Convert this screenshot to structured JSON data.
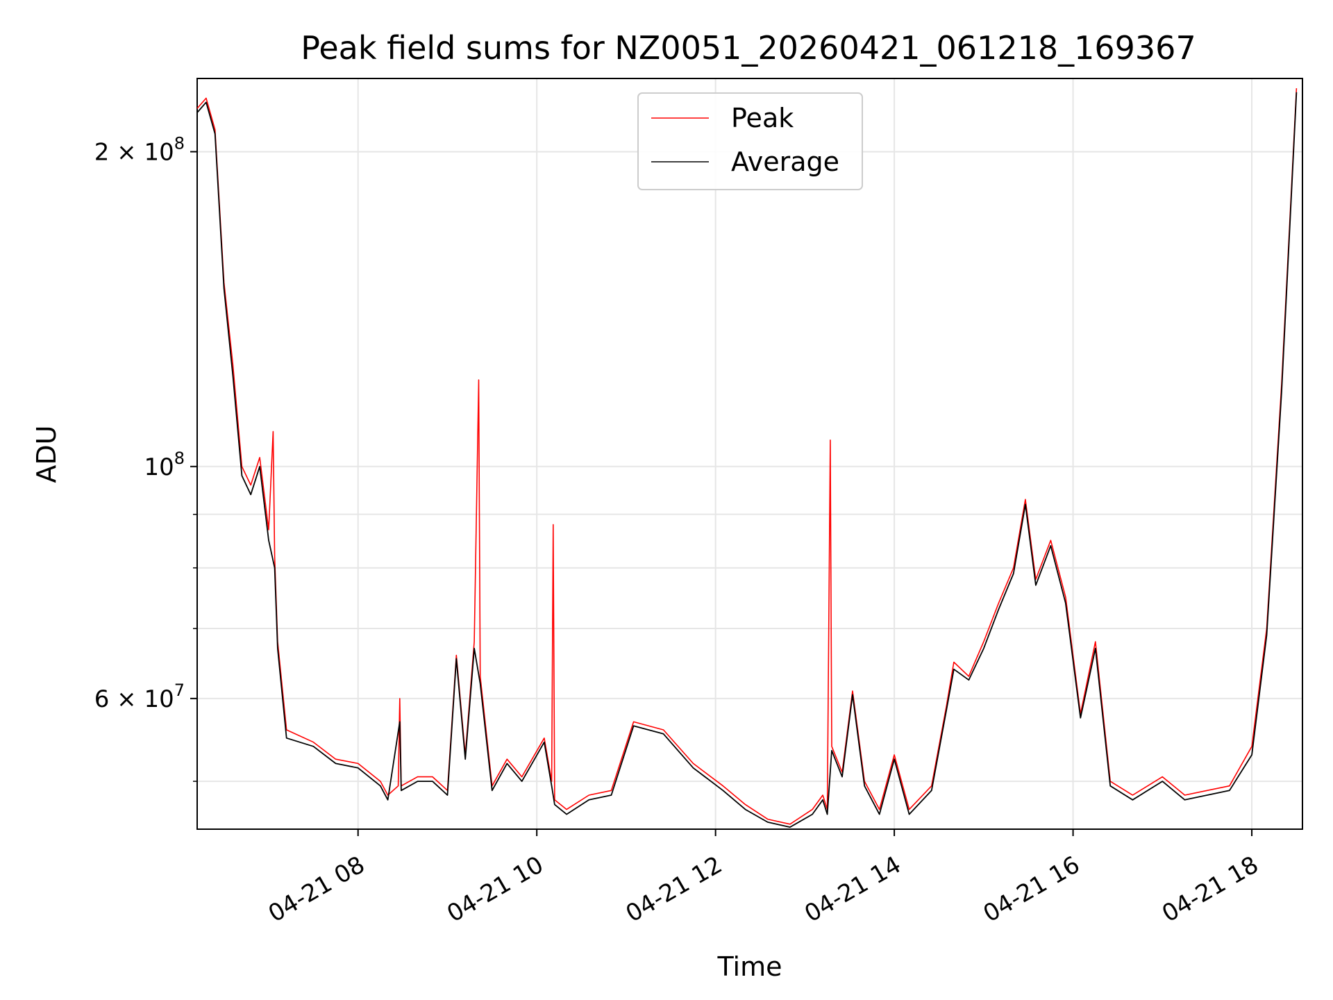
{
  "chart_data": {
    "type": "line",
    "title": "Peak field sums for NZ0051_20260421_061218_169367",
    "xlabel": "Time",
    "ylabel": "ADU",
    "y_scale": "log",
    "ylim": [
      45000000,
      235000000
    ],
    "xlim": [
      "2026-04-21 06:12",
      "2026-04-21 18:34"
    ],
    "grid": true,
    "legend_position": "upper center",
    "x_ticks": [
      {
        "t": "2026-04-21 08:00",
        "label": "04-21 08"
      },
      {
        "t": "2026-04-21 10:00",
        "label": "04-21 10"
      },
      {
        "t": "2026-04-21 12:00",
        "label": "04-21 12"
      },
      {
        "t": "2026-04-21 14:00",
        "label": "04-21 14"
      },
      {
        "t": "2026-04-21 16:00",
        "label": "04-21 16"
      },
      {
        "t": "2026-04-21 18:00",
        "label": "04-21 18"
      }
    ],
    "y_ticks": [
      {
        "value": 200000000,
        "label": "2 × 10",
        "exp": "8"
      },
      {
        "value": 100000000,
        "label": "10",
        "exp": "8"
      },
      {
        "value": 60000000,
        "label": "6 × 10",
        "exp": "7"
      }
    ],
    "y_minor_ticks": [
      50000000,
      70000000,
      80000000,
      90000000
    ],
    "series": [
      {
        "name": "Peak",
        "color": "#ff0000",
        "points": [
          [
            "2026-04-21 06:12",
            220000000
          ],
          [
            "2026-04-21 06:18",
            225000000
          ],
          [
            "2026-04-21 06:24",
            210000000
          ],
          [
            "2026-04-21 06:30",
            150000000
          ],
          [
            "2026-04-21 06:36",
            125000000
          ],
          [
            "2026-04-21 06:42",
            100000000
          ],
          [
            "2026-04-21 06:48",
            96000000
          ],
          [
            "2026-04-21 06:54",
            102000000
          ],
          [
            "2026-04-21 07:00",
            87000000
          ],
          [
            "2026-04-21 07:03",
            108000000
          ],
          [
            "2026-04-21 07:04",
            82000000
          ],
          [
            "2026-04-21 07:06",
            68000000
          ],
          [
            "2026-04-21 07:12",
            56000000
          ],
          [
            "2026-04-21 07:30",
            54500000
          ],
          [
            "2026-04-21 07:45",
            52500000
          ],
          [
            "2026-04-21 08:00",
            52000000
          ],
          [
            "2026-04-21 08:15",
            50000000
          ],
          [
            "2026-04-21 08:20",
            48500000
          ],
          [
            "2026-04-21 08:27",
            49500000
          ],
          [
            "2026-04-21 08:28",
            60000000
          ],
          [
            "2026-04-21 08:29",
            49500000
          ],
          [
            "2026-04-21 08:40",
            50500000
          ],
          [
            "2026-04-21 08:50",
            50500000
          ],
          [
            "2026-04-21 09:00",
            49000000
          ],
          [
            "2026-04-21 09:06",
            66000000
          ],
          [
            "2026-04-21 09:12",
            53000000
          ],
          [
            "2026-04-21 09:18",
            68000000
          ],
          [
            "2026-04-21 09:21",
            121000000
          ],
          [
            "2026-04-21 09:22",
            63000000
          ],
          [
            "2026-04-21 09:30",
            49500000
          ],
          [
            "2026-04-21 09:40",
            52500000
          ],
          [
            "2026-04-21 09:50",
            50500000
          ],
          [
            "2026-04-21 10:05",
            55000000
          ],
          [
            "2026-04-21 10:10",
            50000000
          ],
          [
            "2026-04-21 10:11",
            88000000
          ],
          [
            "2026-04-21 10:12",
            48000000
          ],
          [
            "2026-04-21 10:20",
            47000000
          ],
          [
            "2026-04-21 10:35",
            48500000
          ],
          [
            "2026-04-21 10:50",
            49000000
          ],
          [
            "2026-04-21 11:05",
            57000000
          ],
          [
            "2026-04-21 11:25",
            56000000
          ],
          [
            "2026-04-21 11:45",
            52000000
          ],
          [
            "2026-04-21 12:05",
            49500000
          ],
          [
            "2026-04-21 12:20",
            47500000
          ],
          [
            "2026-04-21 12:35",
            46000000
          ],
          [
            "2026-04-21 12:50",
            45500000
          ],
          [
            "2026-04-21 13:05",
            47000000
          ],
          [
            "2026-04-21 13:12",
            48500000
          ],
          [
            "2026-04-21 13:15",
            47000000
          ],
          [
            "2026-04-21 13:17",
            106000000
          ],
          [
            "2026-04-21 13:18",
            54000000
          ],
          [
            "2026-04-21 13:25",
            51000000
          ],
          [
            "2026-04-21 13:32",
            61000000
          ],
          [
            "2026-04-21 13:40",
            50000000
          ],
          [
            "2026-04-21 13:50",
            47000000
          ],
          [
            "2026-04-21 14:00",
            53000000
          ],
          [
            "2026-04-21 14:10",
            47000000
          ],
          [
            "2026-04-21 14:25",
            49500000
          ],
          [
            "2026-04-21 14:35",
            59000000
          ],
          [
            "2026-04-21 14:40",
            65000000
          ],
          [
            "2026-04-21 14:50",
            63000000
          ],
          [
            "2026-04-21 15:00",
            68000000
          ],
          [
            "2026-04-21 15:10",
            74000000
          ],
          [
            "2026-04-21 15:20",
            80000000
          ],
          [
            "2026-04-21 15:28",
            93000000
          ],
          [
            "2026-04-21 15:35",
            78000000
          ],
          [
            "2026-04-21 15:45",
            85000000
          ],
          [
            "2026-04-21 15:55",
            75000000
          ],
          [
            "2026-04-21 16:05",
            58000000
          ],
          [
            "2026-04-21 16:15",
            68000000
          ],
          [
            "2026-04-21 16:25",
            50000000
          ],
          [
            "2026-04-21 16:40",
            48500000
          ],
          [
            "2026-04-21 17:00",
            50500000
          ],
          [
            "2026-04-21 17:15",
            48500000
          ],
          [
            "2026-04-21 17:30",
            49000000
          ],
          [
            "2026-04-21 17:45",
            49500000
          ],
          [
            "2026-04-21 18:00",
            54000000
          ],
          [
            "2026-04-21 18:10",
            70000000
          ],
          [
            "2026-04-21 18:20",
            120000000
          ],
          [
            "2026-04-21 18:30",
            230000000
          ]
        ]
      },
      {
        "name": "Average",
        "color": "#000000",
        "points": [
          [
            "2026-04-21 06:12",
            218000000
          ],
          [
            "2026-04-21 06:18",
            223000000
          ],
          [
            "2026-04-21 06:24",
            208000000
          ],
          [
            "2026-04-21 06:30",
            148000000
          ],
          [
            "2026-04-21 06:36",
            122000000
          ],
          [
            "2026-04-21 06:42",
            98000000
          ],
          [
            "2026-04-21 06:48",
            94000000
          ],
          [
            "2026-04-21 06:54",
            100000000
          ],
          [
            "2026-04-21 07:00",
            85000000
          ],
          [
            "2026-04-21 07:04",
            80000000
          ],
          [
            "2026-04-21 07:06",
            67000000
          ],
          [
            "2026-04-21 07:12",
            55000000
          ],
          [
            "2026-04-21 07:30",
            54000000
          ],
          [
            "2026-04-21 07:45",
            52000000
          ],
          [
            "2026-04-21 08:00",
            51500000
          ],
          [
            "2026-04-21 08:15",
            49500000
          ],
          [
            "2026-04-21 08:20",
            48000000
          ],
          [
            "2026-04-21 08:28",
            57000000
          ],
          [
            "2026-04-21 08:29",
            49000000
          ],
          [
            "2026-04-21 08:40",
            50000000
          ],
          [
            "2026-04-21 08:50",
            50000000
          ],
          [
            "2026-04-21 09:00",
            48500000
          ],
          [
            "2026-04-21 09:06",
            65500000
          ],
          [
            "2026-04-21 09:12",
            52500000
          ],
          [
            "2026-04-21 09:18",
            67000000
          ],
          [
            "2026-04-21 09:22",
            62000000
          ],
          [
            "2026-04-21 09:30",
            49000000
          ],
          [
            "2026-04-21 09:40",
            52000000
          ],
          [
            "2026-04-21 09:50",
            50000000
          ],
          [
            "2026-04-21 10:05",
            54500000
          ],
          [
            "2026-04-21 10:10",
            49500000
          ],
          [
            "2026-04-21 10:12",
            47500000
          ],
          [
            "2026-04-21 10:20",
            46500000
          ],
          [
            "2026-04-21 10:35",
            48000000
          ],
          [
            "2026-04-21 10:50",
            48500000
          ],
          [
            "2026-04-21 11:05",
            56500000
          ],
          [
            "2026-04-21 11:25",
            55500000
          ],
          [
            "2026-04-21 11:45",
            51500000
          ],
          [
            "2026-04-21 12:05",
            49000000
          ],
          [
            "2026-04-21 12:20",
            47000000
          ],
          [
            "2026-04-21 12:35",
            45700000
          ],
          [
            "2026-04-21 12:50",
            45200000
          ],
          [
            "2026-04-21 13:05",
            46500000
          ],
          [
            "2026-04-21 13:12",
            48000000
          ],
          [
            "2026-04-21 13:15",
            46500000
          ],
          [
            "2026-04-21 13:18",
            53500000
          ],
          [
            "2026-04-21 13:25",
            50500000
          ],
          [
            "2026-04-21 13:32",
            60500000
          ],
          [
            "2026-04-21 13:40",
            49500000
          ],
          [
            "2026-04-21 13:50",
            46500000
          ],
          [
            "2026-04-21 14:00",
            52500000
          ],
          [
            "2026-04-21 14:10",
            46500000
          ],
          [
            "2026-04-21 14:25",
            49000000
          ],
          [
            "2026-04-21 14:35",
            58500000
          ],
          [
            "2026-04-21 14:40",
            64000000
          ],
          [
            "2026-04-21 14:50",
            62500000
          ],
          [
            "2026-04-21 15:00",
            67000000
          ],
          [
            "2026-04-21 15:10",
            73000000
          ],
          [
            "2026-04-21 15:20",
            79000000
          ],
          [
            "2026-04-21 15:28",
            92000000
          ],
          [
            "2026-04-21 15:35",
            77000000
          ],
          [
            "2026-04-21 15:45",
            84000000
          ],
          [
            "2026-04-21 15:55",
            74000000
          ],
          [
            "2026-04-21 16:05",
            57500000
          ],
          [
            "2026-04-21 16:15",
            67000000
          ],
          [
            "2026-04-21 16:25",
            49500000
          ],
          [
            "2026-04-21 16:40",
            48000000
          ],
          [
            "2026-04-21 17:00",
            50000000
          ],
          [
            "2026-04-21 17:15",
            48000000
          ],
          [
            "2026-04-21 17:30",
            48500000
          ],
          [
            "2026-04-21 17:45",
            49000000
          ],
          [
            "2026-04-21 18:00",
            53000000
          ],
          [
            "2026-04-21 18:10",
            69000000
          ],
          [
            "2026-04-21 18:20",
            118000000
          ],
          [
            "2026-04-21 18:30",
            228000000
          ]
        ]
      }
    ]
  }
}
